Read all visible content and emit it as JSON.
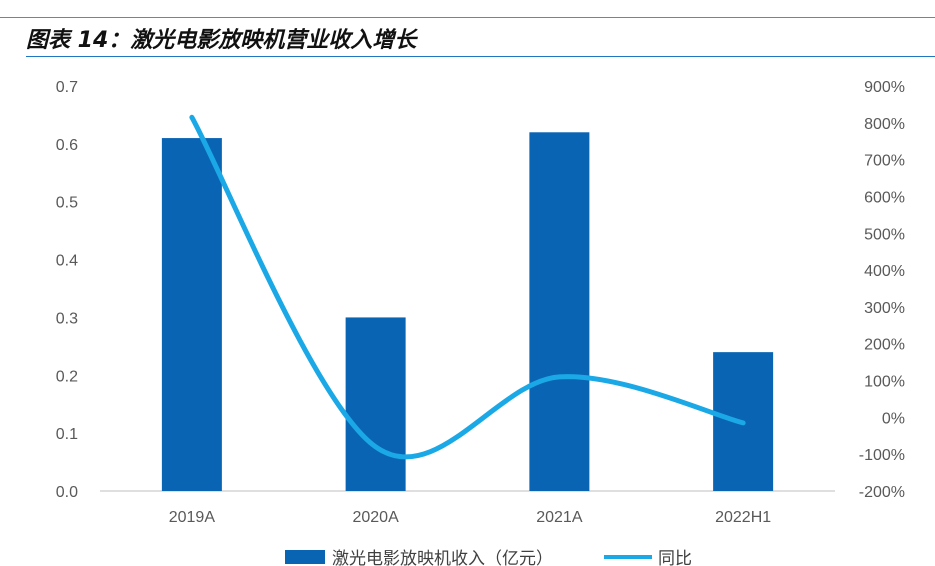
{
  "header": {
    "figure_title": "图表 14：激光电影放映机营业收入增长"
  },
  "colors": {
    "bar": "#0a64b4",
    "line": "#1ba8e6",
    "axis": "#bfbfbf",
    "title_rule": "#1f77c2"
  },
  "chart_data": {
    "type": "bar",
    "categories": [
      "2019A",
      "2020A",
      "2021A",
      "2022H1"
    ],
    "series": [
      {
        "name": "激光电影放映机收入（亿元）",
        "type": "bar",
        "axis": "left",
        "values": [
          0.61,
          0.3,
          0.62,
          0.24
        ]
      },
      {
        "name": "同比",
        "type": "line",
        "axis": "right",
        "smooth": true,
        "values": [
          815,
          -80,
          110,
          -15
        ]
      }
    ],
    "y_left": {
      "min": 0,
      "max": 0.7,
      "step": 0.1,
      "tick_labels": [
        "0.0",
        "0.1",
        "0.2",
        "0.3",
        "0.4",
        "0.5",
        "0.6",
        "0.7"
      ]
    },
    "y_right": {
      "min": -200,
      "max": 900,
      "step": 100,
      "tick_labels": [
        "-200%",
        "-100%",
        "0%",
        "100%",
        "200%",
        "300%",
        "400%",
        "500%",
        "600%",
        "700%",
        "800%",
        "900%"
      ]
    },
    "grid": false,
    "legend_position": "bottom"
  }
}
